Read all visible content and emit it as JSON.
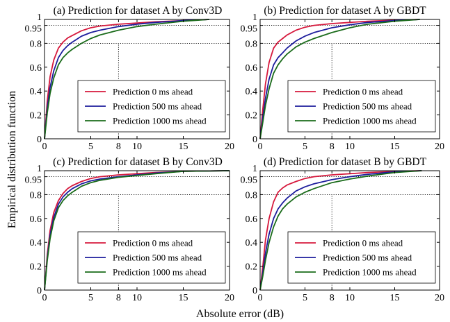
{
  "figure": {
    "xlabel": "Absolute error (dB)",
    "ylabel": "Empirical distribution function"
  },
  "chart_data": [
    {
      "type": "line",
      "title": "(a) Prediction for dataset A by Conv3D",
      "xlim": [
        0,
        20
      ],
      "ylim": [
        0,
        1
      ],
      "xticks": [
        0,
        5,
        8,
        10,
        15,
        20
      ],
      "yticks": [
        0,
        0.2,
        0.4,
        0.6,
        0.8,
        0.95,
        1
      ],
      "reference_lines": {
        "x": 8,
        "y": [
          0.8,
          0.95
        ]
      },
      "legend": "lower-right",
      "series": [
        {
          "name": "Prediction 0 ms ahead",
          "color": "#d6183c",
          "x": [
            0,
            0.3,
            0.6,
            1,
            1.5,
            2,
            2.5,
            3,
            4,
            5,
            6,
            8,
            10,
            12,
            15,
            17.8
          ],
          "y": [
            0,
            0.32,
            0.52,
            0.66,
            0.76,
            0.81,
            0.845,
            0.865,
            0.905,
            0.93,
            0.945,
            0.96,
            0.97,
            0.98,
            0.99,
            1.0
          ]
        },
        {
          "name": "Prediction 500 ms ahead",
          "color": "#1c1c9c",
          "x": [
            0,
            0.3,
            0.6,
            1,
            1.5,
            2,
            2.5,
            3,
            4,
            5,
            6,
            8,
            10,
            12,
            15,
            17.8
          ],
          "y": [
            0,
            0.26,
            0.43,
            0.57,
            0.68,
            0.74,
            0.78,
            0.81,
            0.86,
            0.89,
            0.91,
            0.94,
            0.96,
            0.975,
            0.99,
            1.0
          ]
        },
        {
          "name": "Prediction 1000 ms ahead",
          "color": "#1a6b1a",
          "x": [
            0,
            0.3,
            0.6,
            1,
            1.5,
            2,
            2.5,
            3,
            4,
            5,
            6,
            8,
            10,
            12,
            15,
            17.8
          ],
          "y": [
            0,
            0.22,
            0.38,
            0.51,
            0.62,
            0.68,
            0.72,
            0.75,
            0.8,
            0.84,
            0.87,
            0.91,
            0.94,
            0.96,
            0.985,
            1.0
          ]
        }
      ]
    },
    {
      "type": "line",
      "title": "(b) Prediction for dataset A by GBDT",
      "xlim": [
        0,
        20
      ],
      "ylim": [
        0,
        1
      ],
      "xticks": [
        0,
        5,
        8,
        10,
        15,
        20
      ],
      "yticks": [
        0,
        0.2,
        0.4,
        0.6,
        0.8,
        0.95,
        1
      ],
      "reference_lines": {
        "x": 8,
        "y": [
          0.8,
          0.95
        ]
      },
      "legend": "lower-right",
      "series": [
        {
          "name": "Prediction 0 ms ahead",
          "color": "#d6183c",
          "x": [
            0,
            0.3,
            0.6,
            1,
            1.5,
            2,
            2.5,
            3,
            4,
            5,
            6,
            8,
            10,
            12,
            15,
            17.8
          ],
          "y": [
            0,
            0.25,
            0.46,
            0.64,
            0.76,
            0.81,
            0.84,
            0.87,
            0.91,
            0.935,
            0.95,
            0.965,
            0.975,
            0.985,
            0.993,
            1.0
          ]
        },
        {
          "name": "Prediction 500 ms ahead",
          "color": "#1c1c9c",
          "x": [
            0,
            0.3,
            0.6,
            1,
            1.5,
            2,
            2.5,
            3,
            4,
            5,
            6,
            8,
            10,
            12,
            15,
            17.8
          ],
          "y": [
            0,
            0.18,
            0.34,
            0.5,
            0.62,
            0.68,
            0.72,
            0.76,
            0.82,
            0.86,
            0.89,
            0.93,
            0.955,
            0.975,
            0.99,
            1.0
          ]
        },
        {
          "name": "Prediction 1000 ms ahead",
          "color": "#1a6b1a",
          "x": [
            0,
            0.3,
            0.6,
            1,
            1.5,
            2,
            2.5,
            3,
            4,
            5,
            6,
            8,
            10,
            12,
            15,
            17.8
          ],
          "y": [
            0,
            0.14,
            0.28,
            0.42,
            0.55,
            0.62,
            0.67,
            0.71,
            0.77,
            0.81,
            0.84,
            0.89,
            0.93,
            0.96,
            0.985,
            1.0
          ]
        }
      ]
    },
    {
      "type": "line",
      "title": "(c) Prediction for dataset B by Conv3D",
      "xlim": [
        0,
        20
      ],
      "ylim": [
        0,
        1
      ],
      "xticks": [
        0,
        5,
        8,
        10,
        15,
        20
      ],
      "yticks": [
        0,
        0.2,
        0.4,
        0.6,
        0.8,
        0.95,
        1
      ],
      "reference_lines": {
        "x": 8,
        "y": [
          0.8,
          0.95
        ]
      },
      "legend": "lower-right",
      "series": [
        {
          "name": "Prediction 0 ms ahead",
          "color": "#d6183c",
          "x": [
            0,
            0.3,
            0.6,
            1,
            1.5,
            2,
            2.5,
            3,
            4,
            5,
            6,
            8,
            10,
            12,
            15,
            20
          ],
          "y": [
            0,
            0.3,
            0.5,
            0.65,
            0.75,
            0.81,
            0.85,
            0.875,
            0.91,
            0.935,
            0.95,
            0.965,
            0.975,
            0.985,
            0.995,
            1.0
          ]
        },
        {
          "name": "Prediction 500 ms ahead",
          "color": "#1c1c9c",
          "x": [
            0,
            0.3,
            0.6,
            1,
            1.5,
            2,
            2.5,
            3,
            4,
            5,
            6,
            8,
            10,
            12,
            15,
            20
          ],
          "y": [
            0,
            0.27,
            0.46,
            0.61,
            0.72,
            0.78,
            0.82,
            0.85,
            0.89,
            0.915,
            0.93,
            0.95,
            0.965,
            0.98,
            0.995,
            1.0
          ]
        },
        {
          "name": "Prediction 1000 ms ahead",
          "color": "#1a6b1a",
          "x": [
            0,
            0.3,
            0.6,
            1,
            1.5,
            2,
            2.5,
            3,
            4,
            5,
            6,
            8,
            10,
            12,
            15,
            20
          ],
          "y": [
            0,
            0.25,
            0.43,
            0.58,
            0.69,
            0.75,
            0.79,
            0.82,
            0.87,
            0.9,
            0.92,
            0.945,
            0.96,
            0.975,
            0.995,
            1.0
          ]
        }
      ]
    },
    {
      "type": "line",
      "title": "(d) Prediction for dataset B by GBDT",
      "xlim": [
        0,
        20
      ],
      "ylim": [
        0,
        1
      ],
      "xticks": [
        0,
        5,
        8,
        10,
        15,
        20
      ],
      "yticks": [
        0,
        0.2,
        0.4,
        0.6,
        0.8,
        0.95,
        1
      ],
      "reference_lines": {
        "x": 8,
        "y": [
          0.8,
          0.95
        ]
      },
      "legend": "lower-right",
      "series": [
        {
          "name": "Prediction 0 ms ahead",
          "color": "#d6183c",
          "x": [
            0,
            0.3,
            0.6,
            1,
            1.5,
            2,
            2.5,
            3,
            4,
            5,
            6,
            8,
            10,
            12,
            15,
            18
          ],
          "y": [
            0,
            0.2,
            0.42,
            0.6,
            0.74,
            0.82,
            0.855,
            0.88,
            0.91,
            0.935,
            0.95,
            0.965,
            0.975,
            0.985,
            0.995,
            1.0
          ]
        },
        {
          "name": "Prediction 500 ms ahead",
          "color": "#1c1c9c",
          "x": [
            0,
            0.3,
            0.6,
            1,
            1.5,
            2,
            2.5,
            3,
            4,
            5,
            6,
            8,
            10,
            12,
            15,
            18
          ],
          "y": [
            0,
            0.15,
            0.31,
            0.47,
            0.6,
            0.68,
            0.73,
            0.77,
            0.83,
            0.865,
            0.89,
            0.925,
            0.95,
            0.97,
            0.99,
            1.0
          ]
        },
        {
          "name": "Prediction 1000 ms ahead",
          "color": "#1a6b1a",
          "x": [
            0,
            0.3,
            0.6,
            1,
            1.5,
            2,
            2.5,
            3,
            4,
            5,
            6,
            8,
            10,
            12,
            15,
            18
          ],
          "y": [
            0,
            0.12,
            0.25,
            0.4,
            0.53,
            0.62,
            0.68,
            0.72,
            0.78,
            0.82,
            0.85,
            0.9,
            0.93,
            0.955,
            0.985,
            1.0
          ]
        }
      ]
    }
  ]
}
